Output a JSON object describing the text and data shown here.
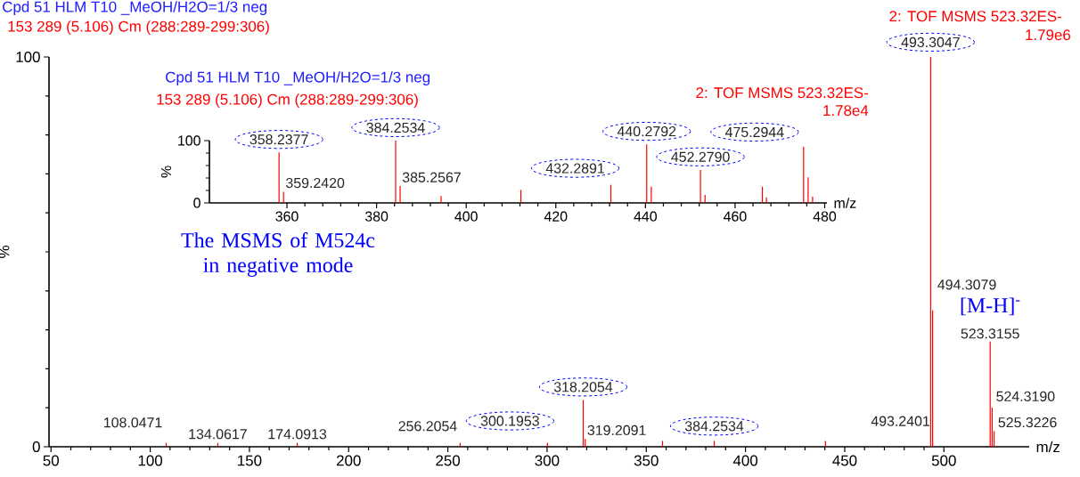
{
  "chart_data": [
    {
      "type": "bar",
      "title": "Cpd 51 HLM T10 _MeOH/H2O=1/3 neg",
      "subtitle": "153 289 (5.106) Cm (288:289-299:306)",
      "xlabel": "m/z",
      "ylabel": "%",
      "color": "#ff0000",
      "x": [
        108.0471,
        134.0617,
        174.0913,
        256.2054,
        300.1953,
        318.2054,
        319.2091,
        358.2,
        384.2534,
        440.3,
        493.3047,
        494.3079,
        523.3155,
        524.319,
        525.3226
      ],
      "values": [
        1,
        1,
        1,
        1,
        1,
        12,
        2,
        1.5,
        1.5,
        1.5,
        100,
        35,
        27,
        10,
        4
      ],
      "xlim": [
        49,
        543
      ],
      "ylim": [
        0,
        100
      ],
      "xticks": [
        50,
        100,
        150,
        200,
        250,
        300,
        350,
        400,
        450,
        500
      ],
      "yticks": [
        0,
        100
      ],
      "annotations": [
        "2: TOF MSMS 523.32ES-",
        "1.79e6",
        "The MSMS of M524c in negative mode",
        {
          "text": "[M-H]$^{-}$",
          "x": 523.3155,
          "y": 27
        },
        {
          "text": "108.0471",
          "x": 108.0471,
          "y": 1
        },
        {
          "text": "134.0617",
          "x": 134.0617,
          "y": 1
        },
        {
          "text": "174.0913",
          "x": 174.0913,
          "y": 1
        },
        {
          "text": "256.2054",
          "x": 256.2054,
          "y": 1
        },
        {
          "text": "300.1953",
          "x": 300.1953,
          "y": 1
        },
        {
          "text": "318.2054",
          "x": 318.2054,
          "y": 12
        },
        {
          "text": "319.2091",
          "x": 319.2091,
          "y": 2
        },
        {
          "text": "384.2534",
          "x": 384.2534,
          "y": 1.5
        },
        "493.2401",
        {
          "text": "493.3047",
          "x": 493.3047,
          "y": 100
        },
        {
          "text": "494.3079",
          "x": 494.3079,
          "y": 35
        },
        {
          "text": "523.3155",
          "x": 523.3155,
          "y": 27
        },
        {
          "text": "524.3190",
          "x": 524.319,
          "y": 10
        },
        {
          "text": "525.3226",
          "x": 525.3226,
          "y": 4
        }
      ]
    },
    {
      "type": "bar",
      "title": "Cpd 51 HLM T10 _MeOH/H2O=1/3 neg",
      "subtitle": "153 289 (5.106) Cm (288:289-299:306)",
      "xlabel": "m/z",
      "ylabel": "%",
      "color": "#ff0000",
      "x": [
        358.2377,
        359.242,
        384.2534,
        385.2567,
        394.4,
        412.2,
        432.2891,
        440.2792,
        441.3,
        452.279,
        453.3,
        466.1,
        467.0,
        475.2944,
        476.3,
        477.3
      ],
      "values": [
        81,
        18,
        100,
        27,
        11,
        21,
        29,
        94,
        26,
        53,
        13,
        26,
        9,
        90,
        41,
        10
      ],
      "xlim": [
        342.7,
        480.5
      ],
      "ylim": [
        0,
        100
      ],
      "xticks": [
        360,
        380,
        400,
        420,
        440,
        460,
        480
      ],
      "yticks": [
        0,
        100
      ],
      "annotations": [
        "2: TOF MSMS 523.32ES-",
        "1.78e4",
        {
          "text": "358.2377",
          "x": 358.2377,
          "y": 81
        },
        {
          "text": "359.2420",
          "x": 359.242,
          "y": 18
        },
        {
          "text": "384.2534",
          "x": 384.2534,
          "y": 100
        },
        {
          "text": "385.2567",
          "x": 385.2567,
          "y": 27
        },
        {
          "text": "432.2891",
          "x": 432.2891,
          "y": 29
        },
        {
          "text": "440.2792",
          "x": 440.2792,
          "y": 94
        },
        {
          "text": "452.2790",
          "x": 452.279,
          "y": 53
        },
        {
          "text": "475.2944",
          "x": 475.2944,
          "y": 90
        }
      ]
    }
  ]
}
